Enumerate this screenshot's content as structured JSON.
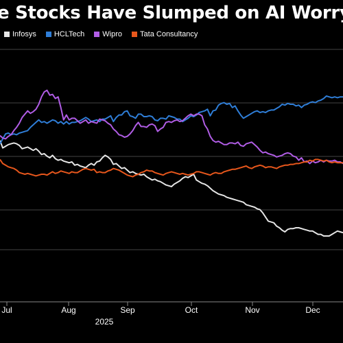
{
  "chart_data": {
    "type": "line",
    "title": "e Stocks Have Slumped on AI Worry",
    "year_label": "2025",
    "x_ticks": [
      "Jul",
      "Aug",
      "Sep",
      "Oct",
      "Nov",
      "Dec"
    ],
    "legend_placement": "top-left",
    "grid": true,
    "series": [
      {
        "name": "Infosys",
        "color": "#e6e6e6",
        "values": [
          196,
          187,
          189,
          191,
          192,
          193,
          192,
          190,
          186,
          187,
          188,
          186,
          184,
          186,
          183,
          179,
          180,
          177,
          175,
          178,
          174,
          172,
          173,
          171,
          170,
          169,
          170,
          166,
          167,
          165,
          164,
          163,
          166,
          168,
          166,
          170,
          171,
          175,
          178,
          176,
          173,
          167,
          168,
          165,
          162,
          163,
          160,
          157,
          158,
          156,
          155,
          154,
          155,
          152,
          150,
          148,
          149,
          147,
          146,
          144,
          142,
          141,
          140,
          143,
          145,
          147,
          150,
          152,
          151,
          153,
          155,
          148,
          146,
          144,
          143,
          141,
          138,
          135,
          133,
          131,
          130,
          129,
          127,
          126,
          125,
          124,
          123,
          122,
          121,
          118,
          117,
          116,
          115,
          113,
          112,
          108,
          103,
          98,
          97,
          96,
          92,
          90,
          87,
          85,
          88,
          89,
          89,
          90,
          90,
          89,
          88,
          87,
          86,
          86,
          84,
          82,
          82,
          80,
          80,
          80,
          82,
          84,
          86,
          85,
          84
        ]
      },
      {
        "name": "HCLTech",
        "color": "#2f7ed8",
        "values": [
          192,
          198,
          204,
          205,
          203,
          204,
          203,
          205,
          206,
          207,
          208,
          212,
          215,
          218,
          221,
          218,
          219,
          217,
          219,
          221,
          220,
          217,
          219,
          216,
          219,
          216,
          218,
          218,
          219,
          220,
          222,
          224,
          222,
          219,
          220,
          221,
          219,
          222,
          222,
          224,
          226,
          219,
          224,
          227,
          227,
          231,
          232,
          226,
          225,
          223,
          228,
          228,
          225,
          225,
          226,
          225,
          221,
          220,
          223,
          223,
          222,
          226,
          225,
          224,
          222,
          222,
          219,
          221,
          223,
          226,
          225,
          227,
          230,
          231,
          232,
          234,
          226,
          232,
          233,
          239,
          241,
          242,
          240,
          241,
          236,
          238,
          232,
          227,
          223,
          225,
          227,
          229,
          231,
          232,
          230,
          231,
          230,
          232,
          233,
          233,
          235,
          237,
          240,
          239,
          241,
          240,
          240,
          238,
          239,
          236,
          239,
          240,
          242,
          243,
          242,
          244,
          245,
          247,
          250,
          249,
          248,
          249,
          248,
          249,
          249
        ]
      },
      {
        "name": "Wipro",
        "color": "#b15de6",
        "values": [
          202,
          199,
          198,
          201,
          203,
          208,
          212,
          217,
          224,
          228,
          232,
          229,
          231,
          234,
          240,
          249,
          255,
          257,
          251,
          252,
          247,
          249,
          236,
          221,
          227,
          221,
          223,
          223,
          220,
          217,
          219,
          221,
          217,
          219,
          218,
          217,
          222,
          221,
          220,
          217,
          215,
          210,
          207,
          203,
          202,
          200,
          201,
          204,
          208,
          214,
          218,
          213,
          213,
          212,
          215,
          216,
          214,
          207,
          210,
          212,
          218,
          219,
          218,
          220,
          221,
          219,
          220,
          223,
          226,
          228,
          226,
          228,
          228,
          226,
          215,
          210,
          201,
          196,
          194,
          195,
          193,
          191,
          191,
          193,
          193,
          192,
          194,
          190,
          189,
          192,
          193,
          194,
          191,
          188,
          184,
          181,
          182,
          180,
          179,
          178,
          176,
          177,
          178,
          180,
          181,
          180,
          177,
          176,
          172,
          175,
          170,
          171,
          168,
          171,
          169,
          170,
          172,
          170,
          172,
          171,
          171,
          172,
          170,
          170,
          168
        ]
      },
      {
        "name": "Tata Consultancy",
        "color": "#e8571c",
        "values": [
          173,
          168,
          166,
          164,
          163,
          162,
          160,
          157,
          156,
          155,
          156,
          155,
          154,
          153,
          154,
          155,
          155,
          154,
          156,
          158,
          156,
          157,
          159,
          158,
          157,
          156,
          158,
          157,
          157,
          159,
          161,
          162,
          161,
          160,
          161,
          157,
          158,
          157,
          157,
          159,
          160,
          162,
          161,
          160,
          158,
          156,
          154,
          153,
          152,
          154,
          155,
          157,
          158,
          160,
          159,
          159,
          157,
          156,
          155,
          154,
          156,
          157,
          158,
          157,
          156,
          155,
          156,
          155,
          154,
          155,
          156,
          158,
          158,
          157,
          156,
          155,
          154,
          156,
          157,
          156,
          156,
          158,
          159,
          160,
          161,
          161,
          162,
          163,
          164,
          165,
          163,
          162,
          164,
          165,
          166,
          165,
          163,
          164,
          164,
          163,
          162,
          164,
          165,
          166,
          166,
          167,
          167,
          168,
          168,
          169,
          170,
          170,
          172,
          171,
          173,
          173,
          172,
          171,
          172,
          170,
          169,
          170,
          169,
          169,
          169
        ]
      }
    ]
  }
}
